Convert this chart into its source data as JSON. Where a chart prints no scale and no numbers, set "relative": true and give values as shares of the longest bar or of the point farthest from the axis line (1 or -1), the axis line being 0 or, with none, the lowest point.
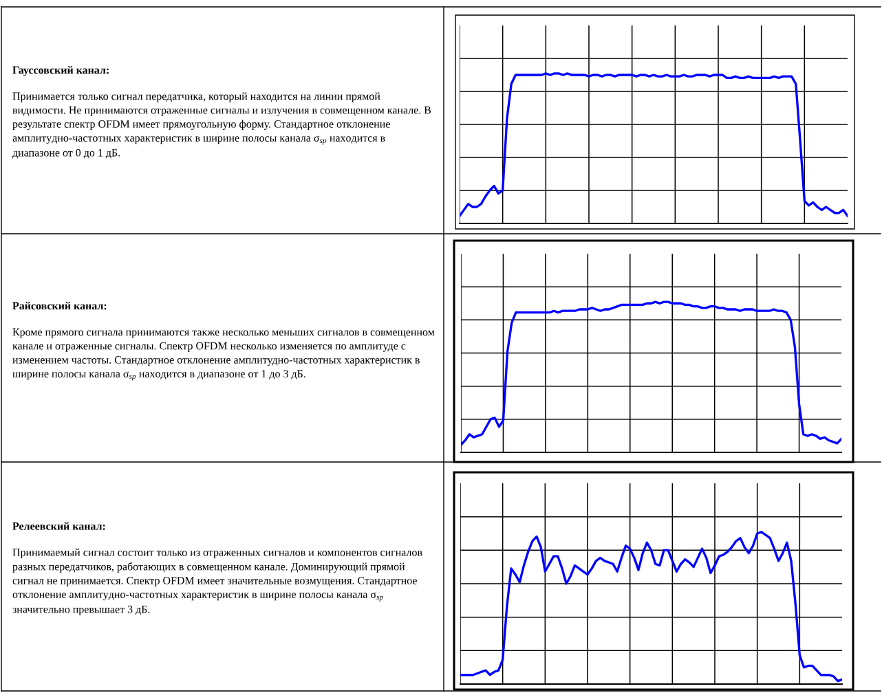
{
  "chart_data": [
    {
      "type": "other",
      "title": "Гауссовский канал:",
      "annotations": [
        "Принимается только сигнал передатчика, который находится на линии прямой видимости. Не принимаются отраженные сигналы и излучения в совмещенном канале. В результате спектр OFDM имеет прямоугольную форму. Стандартное отклонение амплитудно-частотных характеристик в ширине полосы канала σ$_{sp}$ находится в диапазоне от 0 до 1 дБ."
      ]
    },
    {
      "type": "line",
      "relative": true,
      "grid": true,
      "color": "#0000ff",
      "categories": [
        null,
        null,
        null,
        null,
        null,
        null,
        null,
        null,
        null,
        null,
        null,
        null,
        null,
        null,
        null,
        null,
        null,
        null,
        null,
        null,
        null,
        null,
        null,
        null,
        null,
        null,
        null,
        null,
        null,
        null,
        null,
        null,
        null,
        null,
        null,
        null,
        null,
        null,
        null,
        null,
        null,
        null,
        null,
        null,
        null,
        null,
        null,
        null,
        null,
        null,
        null,
        null,
        null,
        null,
        null,
        null,
        null,
        null,
        null,
        null,
        null,
        null,
        null,
        null,
        null,
        null,
        null,
        null,
        null,
        null,
        null,
        null,
        null,
        null,
        null,
        null,
        null,
        null,
        null,
        null,
        null,
        null,
        null,
        null,
        null,
        null,
        null,
        null,
        null,
        null,
        null
      ],
      "values": [
        0.05,
        0.09,
        0.13,
        0.11,
        0.11,
        0.13,
        0.18,
        0.22,
        0.25,
        0.2,
        0.22,
        0.7,
        0.93,
        0.99,
        0.99,
        0.99,
        0.99,
        0.99,
        0.99,
        0.99,
        1.0,
        0.99,
        1.0,
        1.0,
        0.99,
        1.0,
        0.99,
        0.99,
        0.99,
        0.99,
        0.98,
        0.99,
        0.99,
        0.98,
        0.99,
        0.99,
        0.98,
        0.99,
        0.99,
        0.99,
        0.99,
        0.98,
        0.99,
        0.99,
        0.98,
        0.99,
        0.98,
        0.98,
        0.99,
        0.98,
        0.98,
        0.98,
        0.99,
        0.98,
        0.98,
        0.99,
        0.99,
        0.99,
        0.98,
        0.99,
        0.99,
        0.99,
        0.97,
        0.97,
        0.98,
        0.97,
        0.97,
        0.98,
        0.97,
        0.97,
        0.97,
        0.97,
        0.97,
        0.98,
        0.97,
        0.98,
        0.98,
        0.98,
        0.93,
        0.55,
        0.15,
        0.12,
        0.14,
        0.11,
        0.09,
        0.11,
        0.09,
        0.07,
        0.07,
        0.09,
        0.05
      ]
    },
    {
      "type": "other",
      "title": "Райсовский канал:",
      "annotations": [
        "Кроме прямого сигнала принимаются также несколько меньших сигналов в совмещенном канале и отраженные сигналы. Спектр OFDM несколько изменяется по амплитуде с изменением частоты. Стандартное отклонение амплитудно-частотных характеристик в ширине полосы канала σ$_{sp}$ находится в диапазоне от 1 до 3 дБ."
      ]
    },
    {
      "type": "line",
      "relative": true,
      "grid": true,
      "color": "#0000ff",
      "categories": [
        null,
        null,
        null,
        null,
        null,
        null,
        null,
        null,
        null,
        null,
        null,
        null,
        null,
        null,
        null,
        null,
        null,
        null,
        null,
        null,
        null,
        null,
        null,
        null,
        null,
        null,
        null,
        null,
        null,
        null,
        null,
        null,
        null,
        null,
        null,
        null,
        null,
        null,
        null,
        null,
        null,
        null,
        null,
        null,
        null,
        null,
        null,
        null,
        null,
        null,
        null,
        null,
        null,
        null,
        null,
        null,
        null,
        null,
        null,
        null,
        null,
        null,
        null,
        null,
        null,
        null,
        null,
        null,
        null,
        null,
        null,
        null,
        null,
        null,
        null,
        null,
        null,
        null,
        null,
        null,
        null,
        null,
        null,
        null,
        null,
        null,
        null,
        null,
        null,
        null,
        null
      ],
      "values": [
        0.05,
        0.08,
        0.12,
        0.1,
        0.11,
        0.12,
        0.17,
        0.22,
        0.23,
        0.17,
        0.21,
        0.67,
        0.86,
        0.93,
        0.93,
        0.93,
        0.93,
        0.93,
        0.93,
        0.93,
        0.93,
        0.93,
        0.94,
        0.93,
        0.94,
        0.94,
        0.94,
        0.94,
        0.95,
        0.95,
        0.95,
        0.96,
        0.95,
        0.94,
        0.95,
        0.95,
        0.96,
        0.97,
        0.98,
        0.98,
        0.98,
        0.98,
        0.98,
        0.98,
        0.99,
        0.99,
        1.0,
        0.99,
        1.0,
        1.0,
        0.99,
        0.99,
        0.99,
        0.98,
        0.98,
        0.97,
        0.97,
        0.96,
        0.96,
        0.97,
        0.97,
        0.96,
        0.96,
        0.95,
        0.95,
        0.95,
        0.94,
        0.95,
        0.95,
        0.95,
        0.94,
        0.94,
        0.94,
        0.94,
        0.95,
        0.94,
        0.94,
        0.93,
        0.88,
        0.7,
        0.32,
        0.12,
        0.11,
        0.12,
        0.11,
        0.09,
        0.1,
        0.08,
        0.07,
        0.06,
        0.09
      ]
    },
    {
      "type": "other",
      "title": "Релеевский канал:",
      "annotations": [
        "Принимаемый сигнал состоит только из отраженных сигналов и компонентов сигналов разных передатчиков, работающих в совмещенном канале. Доминирующий прямой сигнал не принимается. Спектр OFDM имеет значительные возмущения. Стандартное отклонение амплитудно-частотных характеристик в ширине полосы канала σ$_{sp}$ значительно превышает 3 дБ."
      ]
    },
    {
      "type": "line",
      "relative": true,
      "grid": true,
      "color": "#0000ff",
      "categories": [
        null,
        null,
        null,
        null,
        null,
        null,
        null,
        null,
        null,
        null,
        null,
        null,
        null,
        null,
        null,
        null,
        null,
        null,
        null,
        null,
        null,
        null,
        null,
        null,
        null,
        null,
        null,
        null,
        null,
        null,
        null,
        null,
        null,
        null,
        null,
        null,
        null,
        null,
        null,
        null,
        null,
        null,
        null,
        null,
        null,
        null,
        null,
        null,
        null,
        null,
        null,
        null,
        null,
        null,
        null,
        null,
        null,
        null,
        null,
        null,
        null,
        null,
        null,
        null,
        null,
        null,
        null,
        null,
        null,
        null,
        null,
        null,
        null,
        null,
        null,
        null,
        null,
        null,
        null,
        null,
        null,
        null,
        null,
        null,
        null,
        null,
        null,
        null,
        null,
        null,
        null
      ],
      "values": [
        0.06,
        0.06,
        0.06,
        0.06,
        0.07,
        0.08,
        0.09,
        0.06,
        0.08,
        0.09,
        0.16,
        0.51,
        0.76,
        0.72,
        0.67,
        0.78,
        0.87,
        0.94,
        0.97,
        0.9,
        0.74,
        0.79,
        0.84,
        0.84,
        0.76,
        0.66,
        0.71,
        0.78,
        0.76,
        0.74,
        0.72,
        0.76,
        0.81,
        0.83,
        0.81,
        0.8,
        0.79,
        0.74,
        0.83,
        0.91,
        0.89,
        0.83,
        0.75,
        0.86,
        0.93,
        0.88,
        0.79,
        0.78,
        0.88,
        0.88,
        0.81,
        0.74,
        0.79,
        0.82,
        0.8,
        0.77,
        0.83,
        0.89,
        0.83,
        0.73,
        0.78,
        0.84,
        0.85,
        0.87,
        0.9,
        0.94,
        0.96,
        0.9,
        0.86,
        0.91,
        0.99,
        1.0,
        0.98,
        0.96,
        0.89,
        0.81,
        0.86,
        0.93,
        0.81,
        0.53,
        0.19,
        0.11,
        0.12,
        0.12,
        0.09,
        0.06,
        0.06,
        0.06,
        0.05,
        0.02,
        0.03
      ]
    }
  ]
}
